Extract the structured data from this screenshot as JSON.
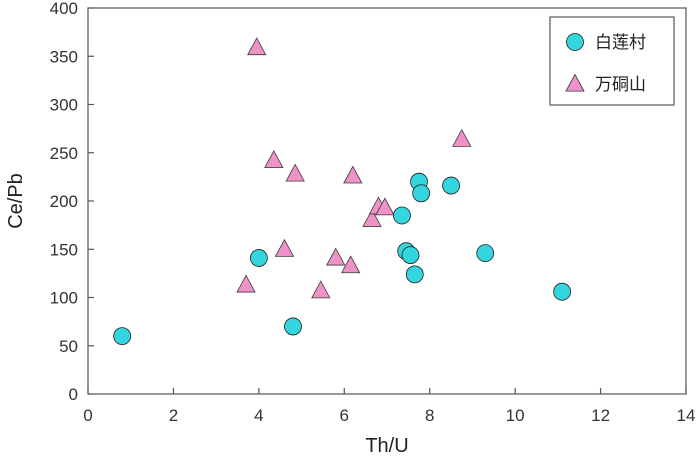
{
  "chart_data": {
    "type": "scatter",
    "title": "",
    "xlabel": "Th/U",
    "ylabel": "Ce/Pb",
    "xlim": [
      0,
      14
    ],
    "ylim": [
      0,
      400
    ],
    "xticks": [
      0,
      2,
      4,
      6,
      8,
      10,
      12,
      14
    ],
    "yticks": [
      0,
      50,
      100,
      150,
      200,
      250,
      300,
      350,
      400
    ],
    "grid": false,
    "legend_position": "top-right",
    "series": [
      {
        "name": "白莲村",
        "marker": "circle",
        "color": "#33D6DE",
        "points": [
          {
            "x": 0.8,
            "y": 60
          },
          {
            "x": 4.0,
            "y": 141
          },
          {
            "x": 4.8,
            "y": 70
          },
          {
            "x": 7.35,
            "y": 185
          },
          {
            "x": 7.45,
            "y": 148
          },
          {
            "x": 7.55,
            "y": 144
          },
          {
            "x": 7.65,
            "y": 124
          },
          {
            "x": 7.75,
            "y": 220
          },
          {
            "x": 7.8,
            "y": 208
          },
          {
            "x": 8.5,
            "y": 216
          },
          {
            "x": 9.3,
            "y": 146
          },
          {
            "x": 11.1,
            "y": 106
          }
        ]
      },
      {
        "name": "万硐山",
        "marker": "triangle",
        "color": "#EE92C8",
        "points": [
          {
            "x": 3.7,
            "y": 113
          },
          {
            "x": 3.95,
            "y": 359
          },
          {
            "x": 4.35,
            "y": 242
          },
          {
            "x": 4.6,
            "y": 150
          },
          {
            "x": 4.85,
            "y": 228
          },
          {
            "x": 5.45,
            "y": 107
          },
          {
            "x": 5.8,
            "y": 141
          },
          {
            "x": 6.15,
            "y": 133
          },
          {
            "x": 6.2,
            "y": 226
          },
          {
            "x": 6.65,
            "y": 181
          },
          {
            "x": 6.8,
            "y": 194
          },
          {
            "x": 6.95,
            "y": 193
          },
          {
            "x": 8.75,
            "y": 264
          }
        ]
      }
    ]
  }
}
